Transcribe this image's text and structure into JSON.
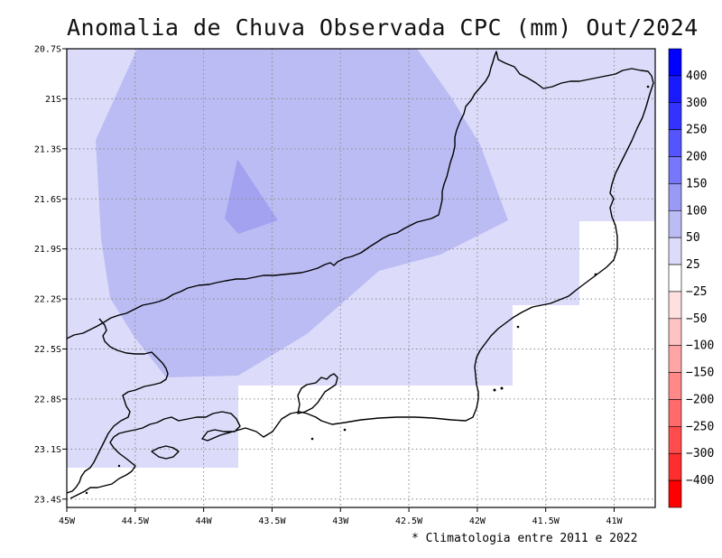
{
  "title": "Anomalia de Chuva Observada CPC (mm) Out/2024",
  "note": "* Climatologia entre 2011 e 2022",
  "map": {
    "lon_range": [
      -45.0,
      -40.7
    ],
    "lat_range": [
      -23.45,
      -20.7
    ],
    "grid": true,
    "x_ticks": [
      {
        "label": "45W",
        "value": -45.0
      },
      {
        "label": "44.5W",
        "value": -44.5
      },
      {
        "label": "44W",
        "value": -44.0
      },
      {
        "label": "43.5W",
        "value": -43.5
      },
      {
        "label": "43W",
        "value": -43.0
      },
      {
        "label": "42.5W",
        "value": -42.5
      },
      {
        "label": "42W",
        "value": -42.0
      },
      {
        "label": "41.5W",
        "value": -41.5
      },
      {
        "label": "41W",
        "value": -41.0
      }
    ],
    "y_ticks": [
      {
        "label": "20.7S",
        "value": -20.7
      },
      {
        "label": "21S",
        "value": -21.0
      },
      {
        "label": "21.3S",
        "value": -21.3
      },
      {
        "label": "21.6S",
        "value": -21.6
      },
      {
        "label": "21.9S",
        "value": -21.9
      },
      {
        "label": "22.2S",
        "value": -22.2
      },
      {
        "label": "22.5S",
        "value": -22.5
      },
      {
        "label": "22.8S",
        "value": -22.8
      },
      {
        "label": "23.1S",
        "value": -23.1
      },
      {
        "label": "23.4S",
        "value": -23.4
      }
    ],
    "anomaly_regions": [
      {
        "level": "25 a 50",
        "color": "#dcdcfa"
      },
      {
        "level": "50 a 100",
        "color": "#bcbcf4"
      },
      {
        "level": "100 a 150",
        "color": "#a2a2f0"
      }
    ]
  },
  "colorbar": {
    "segments": [
      {
        "label": "400",
        "color": "#0000ff"
      },
      {
        "label": "300",
        "color": "#1a1aff"
      },
      {
        "label": "250",
        "color": "#3333ff"
      },
      {
        "label": "200",
        "color": "#5555ff"
      },
      {
        "label": "150",
        "color": "#7777fb"
      },
      {
        "label": "100",
        "color": "#9999f6"
      },
      {
        "label": "50",
        "color": "#bcbcf4"
      },
      {
        "label": "25",
        "color": "#dcdcfa"
      },
      {
        "label": "−25",
        "color": "#ffffff"
      },
      {
        "label": "−50",
        "color": "#ffe0e0"
      },
      {
        "label": "−100",
        "color": "#ffc3c3"
      },
      {
        "label": "−150",
        "color": "#ffa5a5"
      },
      {
        "label": "−200",
        "color": "#ff8888"
      },
      {
        "label": "−250",
        "color": "#ff6b6b"
      },
      {
        "label": "−300",
        "color": "#ff4d4d"
      },
      {
        "label": "−400",
        "color": "#ff2e2e"
      },
      {
        "label": "",
        "color": "#ff0000"
      }
    ]
  }
}
